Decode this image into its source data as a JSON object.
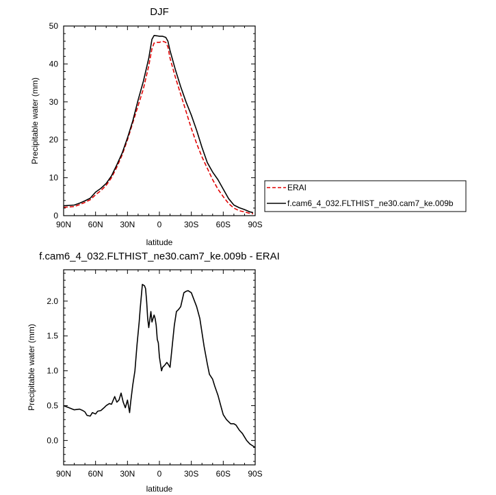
{
  "chart_data": [
    {
      "type": "line",
      "title": "DJF",
      "xlabel": "latitude",
      "ylabel": "Precipitable water (mm)",
      "x_reversed": true,
      "xlim": [
        90,
        -90
      ],
      "ylim": [
        0,
        50
      ],
      "xticks": [
        {
          "value": 90,
          "label": "90N"
        },
        {
          "value": 60,
          "label": "60N"
        },
        {
          "value": 30,
          "label": "30N"
        },
        {
          "value": 0,
          "label": "0"
        },
        {
          "value": -30,
          "label": "30S"
        },
        {
          "value": -60,
          "label": "60S"
        },
        {
          "value": -90,
          "label": "90S"
        }
      ],
      "yticks": [
        0,
        10,
        20,
        30,
        40,
        50
      ],
      "legend": {
        "placement": "right",
        "entries": [
          {
            "label": "ERAI",
            "color": "#e00000",
            "dash": true
          },
          {
            "label": "f.cam6_4_032.FLTHIST_ne30.cam7_ke.009b",
            "color": "#000000",
            "dash": false
          }
        ]
      },
      "series": [
        {
          "name": "ERAI",
          "color": "#e00000",
          "dashed": true,
          "x": [
            90,
            80,
            75,
            70,
            65,
            60,
            55,
            50,
            45,
            40,
            35,
            30,
            25,
            20,
            15,
            10,
            7,
            5,
            2,
            0,
            -3,
            -6,
            -8,
            -10,
            -15,
            -20,
            -25,
            -30,
            -35,
            -40,
            -45,
            -50,
            -55,
            -60,
            -65,
            -70,
            -75,
            -80,
            -85,
            -88
          ],
          "y": [
            2.2,
            2.4,
            2.9,
            3.5,
            4.2,
            5.5,
            6.6,
            8.0,
            10.0,
            12.8,
            16.0,
            20.0,
            24.5,
            29.0,
            33.5,
            39.5,
            44.0,
            45.5,
            45.7,
            45.7,
            46.0,
            45.7,
            44.5,
            41.5,
            36.5,
            32.0,
            27.5,
            23.0,
            19.0,
            15.5,
            12.5,
            9.5,
            7.0,
            5.0,
            3.2,
            2.0,
            1.3,
            1.0,
            0.6,
            0.5
          ]
        },
        {
          "name": "f.cam6_4_032.FLTHIST_ne30.cam7_ke.009b",
          "color": "#000000",
          "dashed": false,
          "x": [
            90,
            80,
            75,
            70,
            65,
            60,
            55,
            50,
            45,
            40,
            35,
            30,
            25,
            20,
            15,
            10,
            7,
            5,
            2,
            0,
            -3,
            -6,
            -8,
            -10,
            -15,
            -20,
            -25,
            -30,
            -35,
            -40,
            -45,
            -50,
            -55,
            -60,
            -65,
            -70,
            -75,
            -80,
            -85,
            -88
          ],
          "y": [
            2.6,
            2.8,
            3.3,
            3.9,
            4.6,
            6.2,
            7.2,
            8.5,
            10.5,
            13.4,
            16.5,
            20.5,
            25.0,
            30.5,
            35.5,
            41.5,
            46.5,
            47.5,
            47.4,
            47.3,
            47.3,
            47.0,
            46.0,
            43.5,
            38.5,
            34.0,
            30.0,
            26.5,
            22.5,
            18.0,
            14.0,
            11.5,
            9.5,
            7.0,
            4.5,
            2.8,
            2.1,
            1.6,
            1.0,
            0.8
          ]
        }
      ]
    },
    {
      "type": "line",
      "title": "f.cam6_4_032.FLTHIST_ne30.cam7_ke.009b - ERAI",
      "xlabel": "latitude",
      "ylabel": "Precipitable water (mm)",
      "x_reversed": true,
      "xlim": [
        90,
        -90
      ],
      "ylim": [
        -0.35,
        2.45
      ],
      "xticks": [
        {
          "value": 90,
          "label": "90N"
        },
        {
          "value": 60,
          "label": "60N"
        },
        {
          "value": 30,
          "label": "30N"
        },
        {
          "value": 0,
          "label": "0"
        },
        {
          "value": -30,
          "label": "30S"
        },
        {
          "value": -60,
          "label": "60S"
        },
        {
          "value": -90,
          "label": "90S"
        }
      ],
      "yticks": [
        0.0,
        0.5,
        1.0,
        1.5,
        2.0
      ],
      "ytick_labels": [
        "0.0",
        "0.5",
        "1.0",
        "1.5",
        "2.0"
      ],
      "series": [
        {
          "color": "#000000",
          "dashed": false,
          "x": [
            90,
            85,
            80,
            75,
            72,
            70,
            68,
            65,
            63,
            60,
            58,
            55,
            52,
            50,
            47,
            45,
            42,
            40,
            38,
            36,
            34,
            32,
            30,
            28,
            27,
            25,
            23,
            21,
            19,
            18,
            16,
            14,
            13,
            12,
            11,
            10,
            8,
            7,
            5,
            4,
            3,
            2,
            1,
            0,
            -2,
            -3,
            -5,
            -7,
            -8,
            -10,
            -12,
            -14,
            -16,
            -18,
            -20,
            -23,
            -25,
            -27,
            -30,
            -33,
            -35,
            -38,
            -40,
            -42,
            -45,
            -47,
            -50,
            -52,
            -55,
            -58,
            -60,
            -63,
            -65,
            -67,
            -70,
            -72,
            -75,
            -78,
            -80,
            -82,
            -85,
            -87,
            -90
          ],
          "y": [
            0.5,
            0.47,
            0.44,
            0.45,
            0.43,
            0.41,
            0.36,
            0.35,
            0.4,
            0.38,
            0.42,
            0.43,
            0.47,
            0.5,
            0.53,
            0.52,
            0.63,
            0.55,
            0.58,
            0.68,
            0.55,
            0.47,
            0.58,
            0.4,
            0.55,
            0.8,
            1.0,
            1.38,
            1.7,
            1.9,
            2.24,
            2.22,
            2.18,
            2.0,
            1.75,
            1.62,
            1.85,
            1.7,
            1.8,
            1.75,
            1.65,
            1.45,
            1.4,
            1.2,
            1.0,
            1.05,
            1.08,
            1.12,
            1.1,
            1.05,
            1.35,
            1.65,
            1.85,
            1.88,
            1.92,
            2.12,
            2.14,
            2.15,
            2.12,
            2.0,
            1.92,
            1.75,
            1.55,
            1.35,
            1.1,
            0.95,
            0.88,
            0.78,
            0.65,
            0.48,
            0.37,
            0.3,
            0.27,
            0.24,
            0.24,
            0.22,
            0.15,
            0.1,
            0.05,
            0.0,
            -0.05,
            -0.07,
            -0.1
          ]
        }
      ]
    }
  ]
}
